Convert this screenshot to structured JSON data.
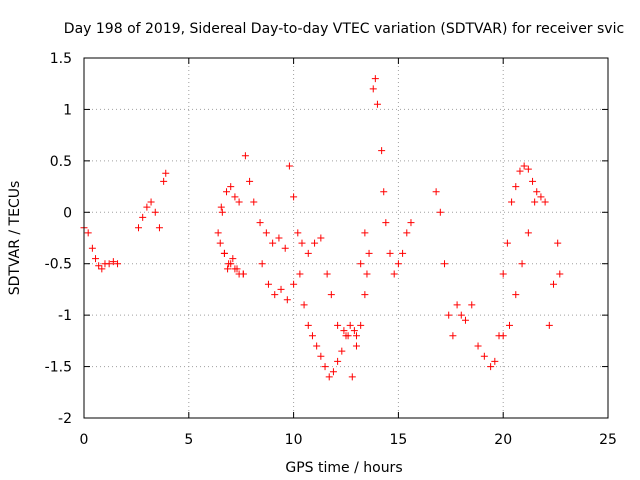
{
  "chart_data": {
    "type": "scatter",
    "title": "Day 198 of 2019, Sidereal Day-to-day VTEC variation (SDTVAR) for receiver svic",
    "xlabel": "GPS time / hours",
    "ylabel": "SDTVAR / TECUs",
    "xlim": [
      0,
      25
    ],
    "ylim": [
      -2,
      1.5
    ],
    "xticks": [
      0,
      5,
      10,
      15,
      20,
      25
    ],
    "xtick_labels": [
      "0",
      "5",
      "10",
      "15",
      "20",
      "25"
    ],
    "yticks": [
      -2,
      -1.5,
      -1,
      -0.5,
      0,
      0.5,
      1,
      1.5
    ],
    "ytick_labels": [
      "-2",
      "-1.5",
      "-1",
      "-0.5",
      "0",
      "0.5",
      "1",
      "1.5"
    ],
    "grid": true,
    "marker": "+",
    "series": [
      {
        "name": "SDTVAR",
        "color": "#ff0000",
        "x": [
          0.0,
          0.2,
          0.4,
          0.55,
          0.7,
          0.85,
          1.0,
          1.2,
          1.4,
          1.6,
          2.6,
          2.8,
          3.0,
          3.2,
          3.4,
          3.6,
          3.8,
          3.9,
          6.4,
          6.55,
          6.7,
          6.85,
          7.0,
          7.2,
          7.4,
          7.6,
          7.7,
          7.9,
          8.1,
          8.4,
          8.7,
          9.0,
          9.3,
          9.6,
          9.8,
          10.0,
          10.2,
          10.4,
          10.7,
          11.0,
          11.3,
          11.6,
          11.8,
          12.1,
          12.4,
          12.6,
          6.6,
          6.8,
          7.0,
          7.2,
          7.4,
          6.5,
          6.7,
          6.9,
          7.1,
          7.3,
          7.6,
          8.5,
          8.8,
          9.1,
          9.4,
          9.7,
          10.0,
          10.3,
          10.5,
          10.7,
          10.9,
          11.1,
          11.3,
          11.5,
          11.7,
          11.9,
          12.1,
          12.3,
          12.5,
          12.7,
          12.9,
          13.0,
          13.2,
          13.4,
          13.5,
          13.6,
          13.8,
          13.9,
          14.0,
          14.2,
          14.3,
          14.4,
          12.8,
          13.0,
          13.2,
          13.4,
          14.6,
          14.8,
          15.0,
          15.2,
          15.4,
          15.6,
          16.8,
          17.0,
          17.2,
          17.4,
          17.6,
          17.8,
          18.0,
          18.2,
          18.5,
          18.8,
          19.1,
          19.4,
          19.6,
          19.8,
          20.0,
          20.2,
          20.4,
          20.6,
          20.8,
          21.0,
          21.2,
          21.4,
          21.6,
          21.8,
          22.0,
          20.0,
          20.3,
          20.6,
          20.9,
          21.2,
          21.5,
          22.2,
          22.4,
          22.6,
          22.7
        ],
        "y": [
          -0.15,
          -0.2,
          -0.35,
          -0.45,
          -0.52,
          -0.55,
          -0.5,
          -0.5,
          -0.48,
          -0.5,
          -0.15,
          -0.05,
          0.05,
          0.1,
          0.0,
          -0.15,
          0.3,
          0.38,
          -0.2,
          0.05,
          -0.4,
          -0.55,
          -0.5,
          -0.55,
          -0.6,
          -0.6,
          0.55,
          0.3,
          0.1,
          -0.1,
          -0.2,
          -0.3,
          -0.25,
          -0.35,
          0.45,
          0.15,
          -0.2,
          -0.3,
          -0.4,
          -0.3,
          -0.25,
          -0.6,
          -0.8,
          -1.1,
          -1.15,
          -1.2,
          0.0,
          0.2,
          0.25,
          0.15,
          0.1,
          -0.3,
          -0.4,
          -0.5,
          -0.45,
          -0.55,
          -0.6,
          -0.5,
          -0.7,
          -0.8,
          -0.75,
          -0.85,
          -0.7,
          -0.6,
          -0.9,
          -1.1,
          -1.2,
          -1.3,
          -1.4,
          -1.5,
          -1.6,
          -1.55,
          -1.45,
          -1.35,
          -1.2,
          -1.1,
          -1.15,
          -1.3,
          -1.1,
          -0.8,
          -0.6,
          -0.4,
          1.2,
          1.3,
          1.05,
          0.6,
          0.2,
          -0.1,
          -1.6,
          -1.2,
          -0.5,
          -0.2,
          -0.4,
          -0.6,
          -0.5,
          -0.4,
          -0.2,
          -0.1,
          0.2,
          0.0,
          -0.5,
          -1.0,
          -1.2,
          -0.9,
          -1.0,
          -1.05,
          -0.9,
          -1.3,
          -1.4,
          -1.5,
          -1.45,
          -1.2,
          -0.6,
          -0.3,
          0.1,
          0.25,
          0.4,
          0.45,
          0.42,
          0.3,
          0.2,
          0.15,
          0.1,
          -1.2,
          -1.1,
          -0.8,
          -0.5,
          -0.2,
          0.1,
          -1.1,
          -0.7,
          -0.3,
          -0.6
        ]
      }
    ]
  }
}
